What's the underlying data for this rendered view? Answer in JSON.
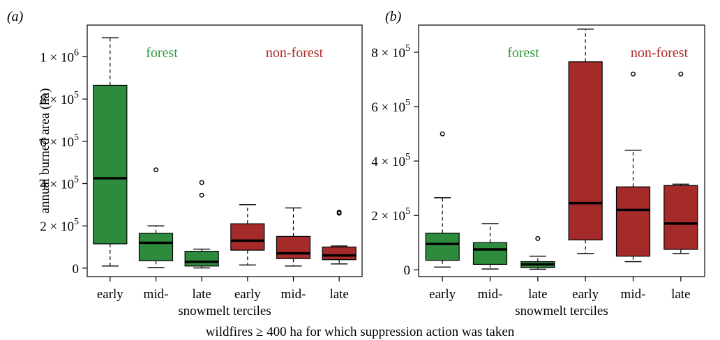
{
  "caption": "wildfires ≥ 400 ha for which suppression action was taken",
  "colors": {
    "forest": "#2e8b3e",
    "non_forest": "#a52a2a",
    "forest_text": "#2e9b3e",
    "non_forest_text": "#b02a2a"
  },
  "chart_data": [
    {
      "type": "boxplot",
      "panel_label": "(a)",
      "ylabel": "annual burned area (ha)",
      "xlabel": "snowmelt terciles",
      "ylim": [
        -40000,
        1150000
      ],
      "yticks": [
        {
          "value": 0,
          "base": "0",
          "exp": ""
        },
        {
          "value": 200000,
          "base": "2 × 10",
          "exp": "5"
        },
        {
          "value": 400000,
          "base": "4 × 10",
          "exp": "5"
        },
        {
          "value": 600000,
          "base": "6 × 10",
          "exp": "5"
        },
        {
          "value": 800000,
          "base": "8 × 10",
          "exp": "5"
        },
        {
          "value": 1000000,
          "base": "1 × 10",
          "exp": "6"
        }
      ],
      "group_labels": [
        {
          "text": "forest",
          "group": "forest"
        },
        {
          "text": "non-forest",
          "group": "non_forest"
        }
      ],
      "categories": [
        "early",
        "mid-",
        "late",
        "early",
        "mid-",
        "late"
      ],
      "boxes": [
        {
          "group": "forest",
          "whisker_low": 10000,
          "q1": 115000,
          "median": 425000,
          "q3": 865000,
          "whisker_high": 1090000,
          "outliers": []
        },
        {
          "group": "forest",
          "whisker_low": 2000,
          "q1": 35000,
          "median": 120000,
          "q3": 165000,
          "whisker_high": 200000,
          "outliers": [
            465000
          ]
        },
        {
          "group": "forest",
          "whisker_low": 1000,
          "q1": 10000,
          "median": 30000,
          "q3": 80000,
          "whisker_high": 90000,
          "outliers": [
            345000,
            405000
          ]
        },
        {
          "group": "non_forest",
          "whisker_low": 15000,
          "q1": 85000,
          "median": 130000,
          "q3": 210000,
          "whisker_high": 300000,
          "outliers": []
        },
        {
          "group": "non_forest",
          "whisker_low": 10000,
          "q1": 45000,
          "median": 70000,
          "q3": 150000,
          "whisker_high": 285000,
          "outliers": []
        },
        {
          "group": "non_forest",
          "whisker_low": 20000,
          "q1": 40000,
          "median": 60000,
          "q3": 100000,
          "whisker_high": 105000,
          "outliers": [
            260000,
            265000
          ]
        }
      ]
    },
    {
      "type": "boxplot",
      "panel_label": "(b)",
      "ylabel": "",
      "xlabel": "snowmelt terciles",
      "ylim": [
        -25000,
        900000
      ],
      "yticks": [
        {
          "value": 0,
          "base": "0",
          "exp": ""
        },
        {
          "value": 200000,
          "base": "2 × 10",
          "exp": "5"
        },
        {
          "value": 400000,
          "base": "4 × 10",
          "exp": "5"
        },
        {
          "value": 600000,
          "base": "6 × 10",
          "exp": "5"
        },
        {
          "value": 800000,
          "base": "8 × 10",
          "exp": "5"
        }
      ],
      "group_labels": [
        {
          "text": "forest",
          "group": "forest"
        },
        {
          "text": "non-forest",
          "group": "non_forest"
        }
      ],
      "categories": [
        "early",
        "mid-",
        "late",
        "early",
        "mid-",
        "late"
      ],
      "boxes": [
        {
          "group": "forest",
          "whisker_low": 10000,
          "q1": 35000,
          "median": 95000,
          "q3": 135000,
          "whisker_high": 265000,
          "outliers": [
            500000
          ]
        },
        {
          "group": "forest",
          "whisker_low": 3000,
          "q1": 20000,
          "median": 75000,
          "q3": 100000,
          "whisker_high": 170000,
          "outliers": []
        },
        {
          "group": "forest",
          "whisker_low": 2000,
          "q1": 8000,
          "median": 20000,
          "q3": 30000,
          "whisker_high": 50000,
          "outliers": [
            115000
          ]
        },
        {
          "group": "non_forest",
          "whisker_low": 60000,
          "q1": 110000,
          "median": 245000,
          "q3": 765000,
          "whisker_high": 885000,
          "outliers": []
        },
        {
          "group": "non_forest",
          "whisker_low": 30000,
          "q1": 50000,
          "median": 220000,
          "q3": 305000,
          "whisker_high": 440000,
          "outliers": [
            720000
          ]
        },
        {
          "group": "non_forest",
          "whisker_low": 60000,
          "q1": 75000,
          "median": 170000,
          "q3": 310000,
          "whisker_high": 315000,
          "outliers": [
            720000
          ]
        }
      ]
    }
  ]
}
